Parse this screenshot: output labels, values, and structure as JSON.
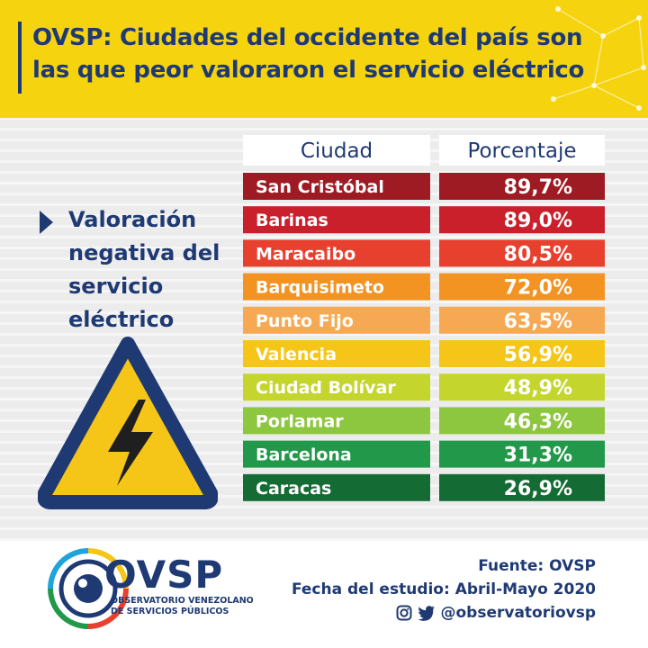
{
  "header": {
    "title": "OVSP: Ciudades del occidente del país son las que peor valoraron el servicio eléctrico"
  },
  "side": {
    "label": "Valoración negativa del servicio eléctrico"
  },
  "chart_data": {
    "type": "table",
    "headers": [
      "Ciudad",
      "Porcentaje"
    ],
    "rows": [
      {
        "city": "San Cristóbal",
        "value": "89,7%",
        "color": "#9e1b23"
      },
      {
        "city": "Barinas",
        "value": "89,0%",
        "color": "#c9202b"
      },
      {
        "city": "Maracaibo",
        "value": "80,5%",
        "color": "#e8402f"
      },
      {
        "city": "Barquisimeto",
        "value": "72,0%",
        "color": "#f39322"
      },
      {
        "city": "Punto Fijo",
        "value": "63,5%",
        "color": "#f6a952"
      },
      {
        "city": "Valencia",
        "value": "56,9%",
        "color": "#f5c518"
      },
      {
        "city": "Ciudad Bolívar",
        "value": "48,9%",
        "color": "#c4d52e"
      },
      {
        "city": "Porlamar",
        "value": "46,3%",
        "color": "#8dc63f"
      },
      {
        "city": "Barcelona",
        "value": "31,3%",
        "color": "#22994a"
      },
      {
        "city": "Caracas",
        "value": "26,9%",
        "color": "#156b34"
      }
    ]
  },
  "footer": {
    "logo": "OVSP",
    "logo_sub1": "OBSERVATORIO VENEZOLANO",
    "logo_sub2": "DE SERVICIOS PÚBLICOS",
    "source": "Fuente: OVSP",
    "date": "Fecha del estudio: Abril-Mayo 2020",
    "handle": "@observatoriovsp"
  },
  "icons": {
    "warning": "high-voltage-warning-icon",
    "instagram": "instagram-icon",
    "twitter": "twitter-icon"
  },
  "colors": {
    "navy": "#1f3a73",
    "yellow": "#f5d40f"
  }
}
